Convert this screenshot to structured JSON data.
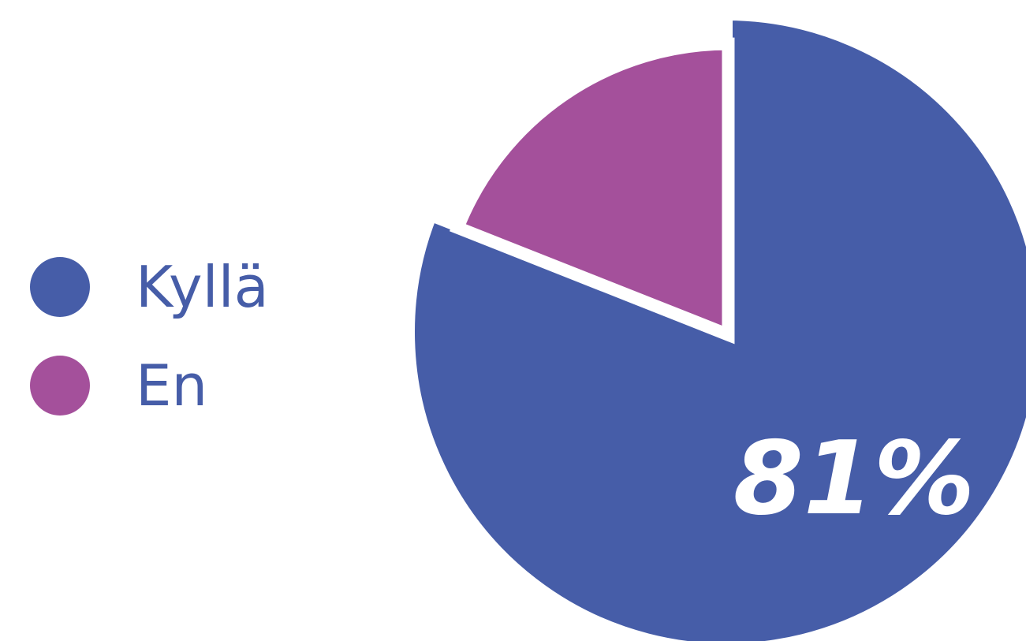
{
  "chart_data": {
    "type": "pie",
    "categories": [
      "Kyllä",
      "En"
    ],
    "values": [
      81,
      19
    ],
    "colors": [
      "#465DA8",
      "#A4509B"
    ],
    "data_labels": [
      "81%",
      ""
    ],
    "title": "",
    "legend_position": "left",
    "legend_text_color": "#465DA8",
    "data_label_color": "#ffffff"
  }
}
